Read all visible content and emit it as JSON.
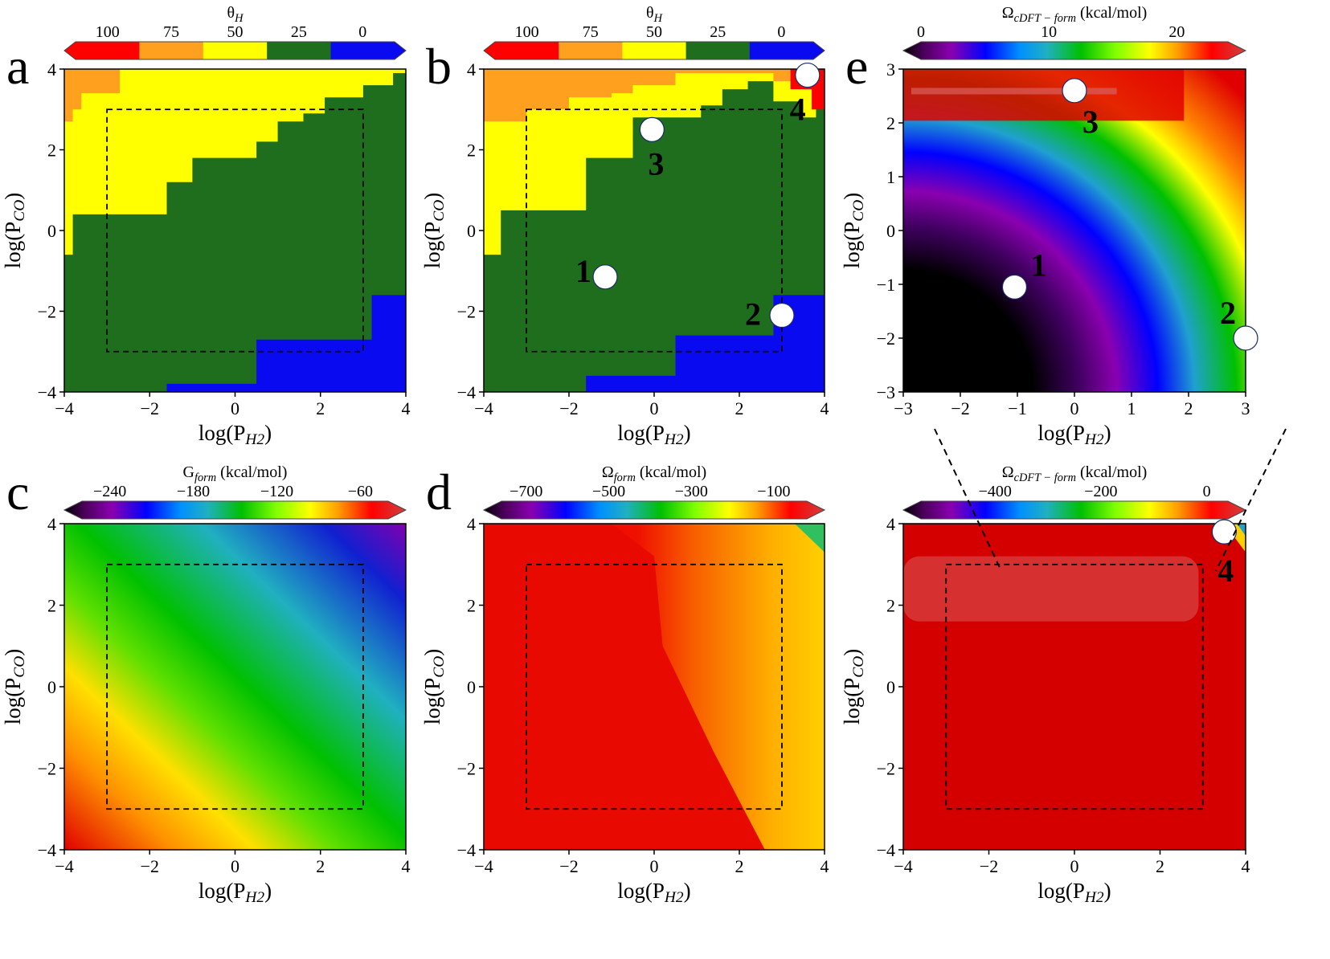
{
  "chart_data": [
    {
      "panel": "a",
      "type": "heatmap",
      "title": "",
      "xlabel": "log(P_H2)",
      "ylabel": "log(P_CO)",
      "xlim": [
        -4,
        4
      ],
      "ylim": [
        -4,
        4
      ],
      "xticks": [
        "−4",
        "−2",
        "0",
        "2",
        "4"
      ],
      "yticks": [
        "−4",
        "−2",
        "0",
        "2",
        "4"
      ],
      "colorbar": {
        "label": "θ_H",
        "ticks": [
          "100",
          "75",
          "50",
          "25",
          "0"
        ],
        "bins": [
          {
            "range": [
              87.5,
              100
            ],
            "color": "#0a0af0"
          },
          {
            "range": [
              62.5,
              87.5
            ],
            "color": "#1e6e1e"
          },
          {
            "range": [
              37.5,
              62.5
            ],
            "color": "#ffff00"
          },
          {
            "range": [
              12.5,
              37.5
            ],
            "color": "#ffa01e"
          },
          {
            "range": [
              0,
              12.5
            ],
            "color": "#ff0000"
          }
        ]
      },
      "regions": [
        {
          "theta_H": 25,
          "color": "#ffa01e",
          "x": [
            -4,
            -2.8
          ],
          "y": [
            2.9,
            4
          ]
        },
        {
          "theta_H": 50,
          "color": "#ffff00",
          "boundary_lower": [
            [
              -4,
              4
            ],
            [
              -4,
              2.9
            ],
            [
              -3.8,
              2.9
            ],
            [
              -3.8,
              0.4
            ],
            [
              -3.0,
              0.4
            ],
            [
              -3.0,
              0.4
            ],
            [
              -1.6,
              0.4
            ],
            [
              -1.6,
              1.3
            ],
            [
              -1.0,
              1.3
            ],
            [
              -1.0,
              1.8
            ],
            [
              0.5,
              1.8
            ],
            [
              0.5,
              2.3
            ],
            [
              1.0,
              2.3
            ],
            [
              1.0,
              2.7
            ],
            [
              1.6,
              2.7
            ],
            [
              1.6,
              3.0
            ],
            [
              2.1,
              3.0
            ],
            [
              2.1,
              3.3
            ],
            [
              3.0,
              3.3
            ],
            [
              3.0,
              3.6
            ],
            [
              3.7,
              3.6
            ],
            [
              3.7,
              4
            ]
          ]
        },
        {
          "theta_H": 75,
          "color": "#1e6e1e",
          "area": "below yellow region"
        },
        {
          "theta_H": 100,
          "color": "#0a0af0",
          "boundary_upper": [
            [
              -1.6,
              -3.9
            ],
            [
              0.5,
              -3.9
            ],
            [
              0.5,
              -2.7
            ],
            [
              3.2,
              -2.7
            ],
            [
              3.2,
              -1.6
            ],
            [
              4,
              -1.6
            ]
          ]
        }
      ],
      "dashed_box": {
        "x": [
          -3,
          3
        ],
        "y": [
          -3,
          3
        ]
      }
    },
    {
      "panel": "b",
      "type": "heatmap",
      "title": "",
      "xlabel": "log(P_H2)",
      "ylabel": "log(P_CO)",
      "xlim": [
        -4,
        4
      ],
      "ylim": [
        -4,
        4
      ],
      "xticks": [
        "−4",
        "−2",
        "0",
        "2",
        "4"
      ],
      "yticks": [
        "−4",
        "−2",
        "0",
        "2",
        "4"
      ],
      "colorbar": {
        "label": "θ_H",
        "ticks": [
          "100",
          "75",
          "50",
          "25",
          "0"
        ]
      },
      "regions": [
        {
          "theta_H": 25,
          "color": "#ffa01e",
          "area": "top band"
        },
        {
          "theta_H": 50,
          "color": "#ffff00",
          "area": "upper-left"
        },
        {
          "theta_H": 75,
          "color": "#1e6e1e",
          "area": "center"
        },
        {
          "theta_H": 100,
          "color": "#0a0af0",
          "area": "bottom-right"
        },
        {
          "theta_H": 0,
          "color": "#ff0000",
          "area": "top-right corner"
        }
      ],
      "points": [
        {
          "label": "1",
          "x": -1.15,
          "y": -1.15
        },
        {
          "label": "2",
          "x": 3.0,
          "y": -2.1
        },
        {
          "label": "3",
          "x": -0.05,
          "y": 2.5
        },
        {
          "label": "4",
          "x": 3.6,
          "y": 3.85
        }
      ],
      "dashed_box": {
        "x": [
          -3,
          3
        ],
        "y": [
          -3,
          3
        ]
      }
    },
    {
      "panel": "e",
      "type": "heatmap",
      "title": "",
      "xlabel": "log(P_H2)",
      "ylabel": "log(P_CO)",
      "xlim": [
        -3,
        3
      ],
      "ylim": [
        -3,
        3
      ],
      "xticks": [
        "−3",
        "−2",
        "−1",
        "0",
        "1",
        "2",
        "3"
      ],
      "yticks": [
        "−3",
        "−2",
        "−1",
        "0",
        "1",
        "2",
        "3"
      ],
      "colorbar": {
        "label": "Ω_cDFT − form (kcal/mol)",
        "ticks": [
          "0",
          "10",
          "20"
        ],
        "range": [
          0,
          24
        ]
      },
      "points": [
        {
          "label": "1",
          "x": -1.05,
          "y": -1.05
        },
        {
          "label": "2",
          "x": 3.0,
          "y": -2.0
        },
        {
          "label": "3",
          "x": 0.0,
          "y": 2.6
        }
      ]
    },
    {
      "panel": "c",
      "type": "heatmap",
      "title": "",
      "xlabel": "log(P_H2)",
      "ylabel": "log(P_CO)",
      "xlim": [
        -4,
        4
      ],
      "ylim": [
        -4,
        4
      ],
      "xticks": [
        "−4",
        "−2",
        "0",
        "2",
        "4"
      ],
      "yticks": [
        "−4",
        "−2",
        "0",
        "2",
        "4"
      ],
      "colorbar": {
        "label": "G_form (kcal/mol)",
        "ticks": [
          "−240",
          "−180",
          "−120",
          "−60"
        ],
        "range": [
          -260,
          -40
        ]
      },
      "dashed_box": {
        "x": [
          -3,
          3
        ],
        "y": [
          -3,
          3
        ]
      }
    },
    {
      "panel": "d",
      "type": "heatmap",
      "title": "",
      "xlabel": "log(P_H2)",
      "ylabel": "log(P_CO)",
      "xlim": [
        -4,
        4
      ],
      "ylim": [
        -4,
        4
      ],
      "xticks": [
        "−4",
        "−2",
        "0",
        "2",
        "4"
      ],
      "yticks": [
        "−4",
        "−2",
        "0",
        "2",
        "4"
      ],
      "colorbar": {
        "label": "Ω_form (kcal/mol)",
        "ticks": [
          "−700",
          "−500",
          "−300",
          "−100"
        ],
        "range": [
          -760,
          -20
        ]
      },
      "dashed_box": {
        "x": [
          -3,
          3
        ],
        "y": [
          -3,
          3
        ]
      }
    },
    {
      "panel": "e-full",
      "type": "heatmap",
      "title": "",
      "xlabel": "log(P_H2)",
      "ylabel": "log(P_CO)",
      "xlim": [
        -4,
        4
      ],
      "ylim": [
        -4,
        4
      ],
      "xticks": [
        "−4",
        "−2",
        "0",
        "2",
        "4"
      ],
      "yticks": [
        "−4",
        "−2",
        "0",
        "2",
        "4"
      ],
      "colorbar": {
        "label": "Ω_cDFT − form (kcal/mol)",
        "ticks": [
          "−400",
          "−200",
          "0"
        ],
        "range": [
          -540,
          40
        ]
      },
      "points": [
        {
          "label": "4",
          "x": 3.5,
          "y": 3.8
        }
      ],
      "dashed_box": {
        "x": [
          -3,
          3
        ],
        "y": [
          -3,
          3
        ]
      }
    }
  ],
  "labels": {
    "panels": {
      "a": "a",
      "b": "b",
      "c": "c",
      "d": "d",
      "e": "e"
    },
    "theta": {
      "main": "θ",
      "sub": "H"
    },
    "g_form": {
      "main": "G",
      "sub": "form",
      "unit": " (kcal/mol)"
    },
    "omega_form": {
      "main": "Ω",
      "sub": "form",
      "unit": " (kcal/mol)"
    },
    "omega_cdft": {
      "main": "Ω",
      "sub": "cDFT − form",
      "unit": " (kcal/mol)"
    },
    "xlabel": {
      "main": "log(P",
      "sub": "H2",
      "end": ")"
    },
    "ylabel": {
      "main": "log(P",
      "sub": "CO",
      "end": ")"
    }
  },
  "colors": {
    "theta_blue": "#0a0af0",
    "theta_green": "#1e6e1e",
    "theta_yellow": "#ffff00",
    "theta_orange": "#ffa01e",
    "theta_red": "#ff0000"
  }
}
